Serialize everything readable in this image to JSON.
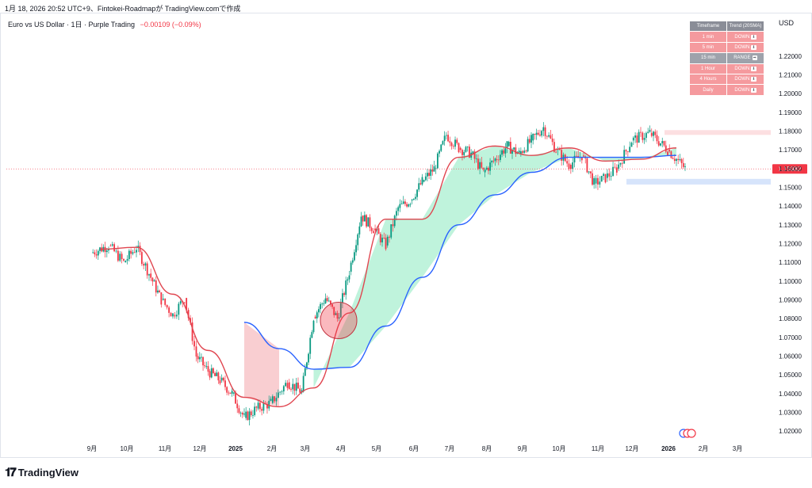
{
  "caption": "1月 18, 2026 20:52 UTC+9、Fintokei-Roadmapが TradingView.comで作成",
  "legend": {
    "title": "Euro vs US Dollar · 1日 · Purple Trading",
    "change": "−0.00109 (−0.09%)"
  },
  "currency_label": "USD",
  "trend_table": {
    "headers": [
      "Timeframe",
      "Trend (20SMA)"
    ],
    "rows": [
      {
        "timeframe": "1 min",
        "trend": "DOWN",
        "icon": "down-arrow-icon",
        "status": "down"
      },
      {
        "timeframe": "5 min",
        "trend": "DOWN",
        "icon": "down-arrow-icon",
        "status": "down"
      },
      {
        "timeframe": "15 min",
        "trend": "RANGE",
        "icon": "right-arrow-icon",
        "status": "range"
      },
      {
        "timeframe": "1 Hour",
        "trend": "DOWN",
        "icon": "down-arrow-icon",
        "status": "down"
      },
      {
        "timeframe": "4 Hours",
        "trend": "DOWN",
        "icon": "down-arrow-icon",
        "status": "down"
      },
      {
        "timeframe": "Daily",
        "trend": "DOWN",
        "icon": "down-arrow-icon",
        "status": "down"
      }
    ]
  },
  "current_price_label": "1.15982",
  "footer_brand": "TradingView",
  "colors": {
    "up_candle": "#089981",
    "down_candle": "#f23645",
    "fast_ma": "#e0454f",
    "slow_ma": "#2962ff",
    "bull_fill": "#b8f2d8",
    "bear_fill": "#f8c9cc",
    "resistance_zone": "#fcdfe1",
    "support_zone": "#d6e4fb",
    "price_tag": "#f23645"
  },
  "chart_data": {
    "type": "candlestick",
    "title": "Euro vs US Dollar · 1日 · Purple Trading",
    "ylim": [
      1.015,
      1.233
    ],
    "y_ticks": [
      "1.02000",
      "1.03000",
      "1.04000",
      "1.05000",
      "1.06000",
      "1.07000",
      "1.08000",
      "1.09000",
      "1.10000",
      "1.11000",
      "1.12000",
      "1.13000",
      "1.14000",
      "1.15000",
      "1.16000",
      "1.17000",
      "1.18000",
      "1.19000",
      "1.20000",
      "1.21000",
      "1.22000"
    ],
    "x_ticks": [
      "9月",
      "10月",
      "11月",
      "12月",
      "2025",
      "2月",
      "3月",
      "4月",
      "5月",
      "6月",
      "7月",
      "8月",
      "9月",
      "10月",
      "11月",
      "12月",
      "2026",
      "2月",
      "3月"
    ],
    "price_path": [
      [
        "9月",
        1.115
      ],
      [
        "9月",
        1.119
      ],
      [
        "10月",
        1.11
      ],
      [
        "10月",
        1.118
      ],
      [
        "10月",
        1.104
      ],
      [
        "11月",
        1.09
      ],
      [
        "11月",
        1.082
      ],
      [
        "11月",
        1.091
      ],
      [
        "12月",
        1.06
      ],
      [
        "12月",
        1.052
      ],
      [
        "12月",
        1.047
      ],
      [
        "2025",
        1.04
      ],
      [
        "2025",
        1.027
      ],
      [
        "2025",
        1.032
      ],
      [
        "2月",
        1.035
      ],
      [
        "2月",
        1.046
      ],
      [
        "3月",
        1.041
      ],
      [
        "3月",
        1.081
      ],
      [
        "3月",
        1.091
      ],
      [
        "4月",
        1.08
      ],
      [
        "4月",
        1.105
      ],
      [
        "4月",
        1.135
      ],
      [
        "5月",
        1.128
      ],
      [
        "5月",
        1.119
      ],
      [
        "5月",
        1.139
      ],
      [
        "6月",
        1.143
      ],
      [
        "6月",
        1.153
      ],
      [
        "6月",
        1.16
      ],
      [
        "7月",
        1.178
      ],
      [
        "7月",
        1.171
      ],
      [
        "7月",
        1.168
      ],
      [
        "8月",
        1.158
      ],
      [
        "8月",
        1.165
      ],
      [
        "8月",
        1.172
      ],
      [
        "9月",
        1.168
      ],
      [
        "9月",
        1.175
      ],
      [
        "9月",
        1.182
      ],
      [
        "10月",
        1.17
      ],
      [
        "10月",
        1.162
      ],
      [
        "10月",
        1.167
      ],
      [
        "11月",
        1.152
      ],
      [
        "11月",
        1.155
      ],
      [
        "11月",
        1.16
      ],
      [
        "12月",
        1.175
      ],
      [
        "12月",
        1.179
      ],
      [
        "2026",
        1.17
      ],
      [
        "2026",
        1.16
      ]
    ],
    "fast_ma": [
      [
        "9月",
        1.117
      ],
      [
        "10月",
        1.118
      ],
      [
        "11月",
        1.093
      ],
      [
        "12月",
        1.063
      ],
      [
        "2025",
        1.038
      ],
      [
        "2月",
        1.033
      ],
      [
        "3月",
        1.043
      ],
      [
        "4月",
        1.083
      ],
      [
        "5月",
        1.133
      ],
      [
        "6月",
        1.133
      ],
      [
        "7月",
        1.166
      ],
      [
        "8月",
        1.172
      ],
      [
        "9月",
        1.167
      ],
      [
        "10月",
        1.171
      ],
      [
        "11月",
        1.164
      ],
      [
        "12月",
        1.165
      ],
      [
        "2026",
        1.171
      ]
    ],
    "slow_ma": [
      [
        "2025",
        1.078
      ],
      [
        "2月",
        1.064
      ],
      [
        "3月",
        1.053
      ],
      [
        "4月",
        1.054
      ],
      [
        "5月",
        1.076
      ],
      [
        "6月",
        1.102
      ],
      [
        "7月",
        1.13
      ],
      [
        "8月",
        1.146
      ],
      [
        "9月",
        1.158
      ],
      [
        "10月",
        1.166
      ],
      [
        "11月",
        1.166
      ],
      [
        "12月",
        1.166
      ],
      [
        "2026",
        1.167
      ]
    ],
    "zones": [
      {
        "name": "resistance",
        "from": 1.1785,
        "to": 1.1805
      },
      {
        "name": "support",
        "from": 1.1515,
        "to": 1.1545
      }
    ],
    "current_price": 1.15982,
    "grid": false,
    "legend_position": "top-left"
  }
}
